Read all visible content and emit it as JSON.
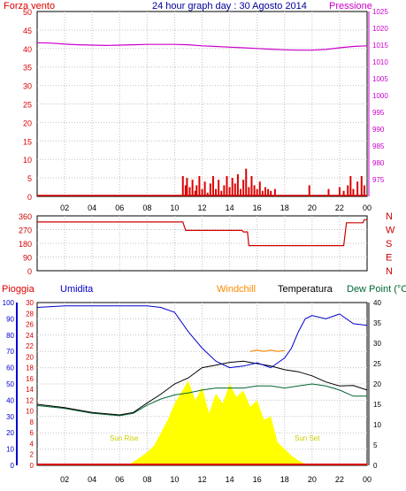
{
  "header": {
    "left_label": "Forza vento",
    "title": "24 hour graph day : 30 Agosto 2014",
    "right_label": "Pressione"
  },
  "colors": {
    "wind": "#dd0000",
    "pressure": "#cc00cc",
    "direction": "#cc0000",
    "title": "#000099",
    "rain": "#dd0000",
    "humidity": "#0000cc",
    "windchill": "#ff8800",
    "temperature": "#000000",
    "dewpoint": "#006633",
    "solar": "#ffff00",
    "sun_text": "#cccc00",
    "grid": "#c0c0c0"
  },
  "lower_header": {
    "rain": "Pioggia",
    "humidity": "Umidita",
    "windchill": "Windchill",
    "temperature": "Temperatura",
    "dewpoint": "Dew Point (°C"
  },
  "sun_labels": {
    "rise": "Sun Rise",
    "set": "Sun Set"
  },
  "x_ticks": [
    "02",
    "04",
    "06",
    "08",
    "10",
    "12",
    "14",
    "16",
    "18",
    "20",
    "22",
    "00"
  ],
  "chart_data": [
    {
      "type": "line",
      "name": "wind-pressure",
      "x_range": [
        0,
        24
      ],
      "y_left_range": [
        0,
        50
      ],
      "y_left_ticks": [
        0,
        5,
        10,
        15,
        20,
        25,
        30,
        35,
        40,
        45,
        50
      ],
      "y_right_range": [
        970,
        1025
      ],
      "y_right_ticks": [
        975,
        980,
        985,
        990,
        995,
        1000,
        1005,
        1010,
        1015,
        1020,
        1025
      ],
      "series": [
        {
          "name": "Pressione",
          "axis": "right",
          "x": [
            0,
            1,
            2,
            3,
            4,
            5,
            6,
            7,
            8,
            9,
            10,
            11,
            12,
            13,
            14,
            15,
            16,
            17,
            18,
            19,
            20,
            21,
            22,
            23,
            24
          ],
          "y": [
            1015.7,
            1015.6,
            1015.3,
            1015.1,
            1015.0,
            1014.9,
            1015.0,
            1015.1,
            1015.2,
            1015.2,
            1015.2,
            1015.1,
            1014.8,
            1014.6,
            1014.4,
            1014.2,
            1014.0,
            1013.8,
            1013.6,
            1013.5,
            1013.5,
            1013.7,
            1014.2,
            1014.6,
            1014.8
          ]
        },
        {
          "name": "Forza vento",
          "axis": "left",
          "type": "bar",
          "x": [
            10.6,
            10.8,
            10.9,
            11.1,
            11.3,
            11.5,
            11.6,
            11.8,
            12.0,
            12.2,
            12.4,
            12.6,
            12.8,
            13.0,
            13.2,
            13.4,
            13.6,
            13.8,
            14.0,
            14.2,
            14.4,
            14.6,
            14.8,
            15.0,
            15.2,
            15.4,
            15.6,
            15.8,
            16.0,
            16.2,
            16.4,
            16.6,
            16.8,
            17.0,
            17.3,
            19.8,
            21.2,
            22.0,
            22.3,
            22.6,
            22.8,
            23.0,
            23.3,
            23.6,
            23.8
          ],
          "y": [
            5.5,
            3.0,
            5.0,
            2.5,
            4.5,
            1.5,
            3.0,
            5.5,
            2.0,
            4.0,
            1.0,
            3.5,
            5.5,
            2.0,
            4.5,
            1.5,
            3.0,
            5.5,
            2.5,
            5.0,
            3.5,
            6.0,
            2.0,
            4.5,
            7.5,
            2.5,
            5.5,
            3.0,
            2.0,
            4.0,
            1.5,
            2.5,
            2.0,
            1.5,
            2.0,
            3.0,
            2.0,
            2.5,
            1.5,
            3.0,
            5.5,
            2.0,
            4.0,
            5.5,
            3.0
          ]
        }
      ]
    },
    {
      "type": "line",
      "name": "wind-direction",
      "x_range": [
        0,
        24
      ],
      "y_range": [
        0,
        360
      ],
      "y_ticks": [
        0,
        90,
        180,
        270,
        360
      ],
      "right_labels": [
        "N",
        "W",
        "S",
        "E",
        "N"
      ],
      "series": [
        {
          "name": "Direzione",
          "x": [
            0,
            10.6,
            10.8,
            14.9,
            15.0,
            15.3,
            15.4,
            22.3,
            22.5,
            23.7,
            23.8,
            24
          ],
          "y": [
            320,
            320,
            265,
            265,
            255,
            255,
            165,
            165,
            315,
            315,
            335,
            335
          ]
        }
      ]
    },
    {
      "type": "line",
      "name": "temperature-humidity-rain",
      "x_range": [
        0,
        24
      ],
      "rain_axis": {
        "range": [
          0,
          30
        ],
        "ticks": [
          0,
          2,
          4,
          6,
          8,
          10,
          12,
          14,
          16,
          18,
          20,
          22,
          24,
          26,
          28,
          30
        ]
      },
      "humidity_axis": {
        "range": [
          0,
          100
        ],
        "ticks": [
          0,
          10,
          20,
          30,
          40,
          50,
          60,
          70,
          80,
          90,
          100
        ]
      },
      "temp_axis": {
        "range": [
          0,
          40
        ],
        "ticks": [
          0,
          5,
          10,
          15,
          20,
          25,
          30,
          35,
          40
        ]
      },
      "series": [
        {
          "name": "Umidita",
          "axis": "humidity",
          "x": [
            0,
            2,
            4,
            6,
            7,
            8,
            9,
            10,
            11,
            12,
            13,
            14,
            15,
            16,
            17,
            18,
            18.5,
            19,
            19.5,
            20,
            21,
            22,
            23,
            24
          ],
          "y": [
            97,
            98,
            98,
            98,
            98,
            98,
            97,
            94,
            82,
            72,
            64,
            60,
            61,
            63,
            60,
            66,
            72,
            82,
            90,
            92,
            90,
            93,
            87,
            86
          ]
        },
        {
          "name": "Temperatura",
          "axis": "temp",
          "x": [
            0,
            2,
            4,
            6,
            7,
            8,
            9,
            10,
            11,
            12,
            13,
            14,
            15,
            16,
            17,
            18,
            19,
            20,
            21,
            22,
            23,
            24
          ],
          "y": [
            15.0,
            14.2,
            13.0,
            12.4,
            13.0,
            15.3,
            17.5,
            20.0,
            21.5,
            24.0,
            24.6,
            25.3,
            25.6,
            25.0,
            24.4,
            23.5,
            23.0,
            22.0,
            20.5,
            19.5,
            19.6,
            18.5
          ]
        },
        {
          "name": "Dew Point",
          "axis": "temp",
          "x": [
            0,
            2,
            4,
            6,
            7,
            8,
            9,
            10,
            11,
            12,
            13,
            14,
            15,
            16,
            17,
            18,
            19,
            20,
            21,
            22,
            23,
            24
          ],
          "y": [
            14.7,
            14.0,
            12.8,
            12.2,
            12.8,
            14.8,
            16.3,
            17.3,
            17.8,
            18.5,
            19.0,
            19.0,
            19.0,
            19.5,
            19.5,
            19.0,
            19.5,
            20.0,
            19.5,
            18.5,
            17.0,
            17.0
          ]
        },
        {
          "name": "Windchill",
          "axis": "temp",
          "x": [
            15.5,
            16,
            16.5,
            17,
            17.5,
            18
          ],
          "y": [
            28.0,
            28.3,
            28.0,
            28.3,
            28.0,
            28.2
          ]
        },
        {
          "name": "Solar",
          "axis": "humidity",
          "type": "area",
          "x": [
            0,
            6.6,
            7.0,
            7.5,
            8.0,
            8.5,
            9.0,
            9.5,
            10.0,
            10.5,
            11.0,
            11.5,
            12.0,
            12.5,
            13.0,
            13.5,
            14.0,
            14.5,
            15.0,
            15.5,
            16.0,
            16.5,
            17.0,
            17.5,
            18.0,
            18.5,
            19.0,
            19.5,
            20.0,
            24
          ],
          "y": [
            0,
            0,
            2,
            5,
            8,
            12,
            20,
            28,
            38,
            45,
            52,
            40,
            48,
            32,
            44,
            38,
            50,
            42,
            46,
            36,
            40,
            28,
            30,
            14,
            10,
            6,
            3,
            1,
            0,
            0
          ]
        },
        {
          "name": "Pioggia",
          "axis": "rain",
          "x": [
            0,
            24
          ],
          "y": [
            0,
            0
          ]
        }
      ]
    }
  ]
}
